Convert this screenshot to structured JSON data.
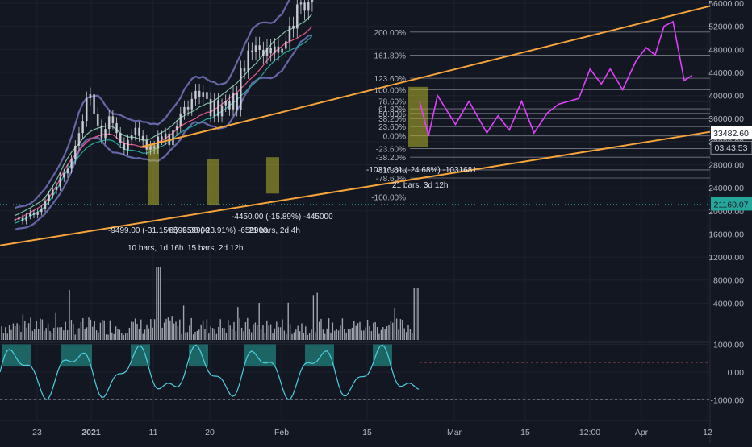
{
  "chart_data": {
    "type": "candlestick",
    "price_axis": {
      "ticks": [
        "56000.00",
        "52000.00",
        "48000.00",
        "44000.00",
        "40000.00",
        "36000.00",
        "32000.00",
        "28000.00",
        "24000.00",
        "20000.00",
        "16000.00",
        "12000.00",
        "8000.00",
        "4000.00"
      ],
      "current_price_label": "33482.60",
      "countdown_label": "03:43:53",
      "green_price_label": "21160.07"
    },
    "oscillator_axis": {
      "ticks": [
        "1000.00",
        "0.00",
        "-1000.00"
      ]
    },
    "x_axis": {
      "ticks": [
        "23",
        "2021",
        "11",
        "20",
        "Feb",
        "15",
        "Mar",
        "15",
        "12:00",
        "Apr",
        "12"
      ]
    },
    "fib_levels": [
      {
        "label": "200.00%",
        "price": 51000
      },
      {
        "label": "161.80%",
        "price": 47000
      },
      {
        "label": "123.60%",
        "price": 43000
      },
      {
        "label": "100.00%",
        "price": 41000
      },
      {
        "label": "78.60%",
        "price": 39000
      },
      {
        "label": "61.80%",
        "price": 37700
      },
      {
        "label": "50.00%",
        "price": 36900
      },
      {
        "label": "38.20%",
        "price": 36000
      },
      {
        "label": "23.60%",
        "price": 34600
      },
      {
        "label": "0.00%",
        "price": 33000
      },
      {
        "label": "-23.60%",
        "price": 30800
      },
      {
        "label": "-38.20%",
        "price": 29300
      },
      {
        "label": "-61.80%",
        "price": 27100
      },
      {
        "label": "-78.60%",
        "price": 25700
      },
      {
        "label": "-100.00%",
        "price": 22400
      }
    ],
    "annotations": [
      {
        "text": "-9499.00 (-31.15%) -659900",
        "time": 10.5,
        "price": 18800
      },
      {
        "text": "-6599.00 (-23.91%) -659900",
        "time": 14.4,
        "price": 18800
      },
      {
        "text": "10 bars, 1d 16h",
        "time": 11.2,
        "price": 15500
      },
      {
        "text": "15 bars, 2d 12h",
        "time": 16.5,
        "price": 15500
      },
      {
        "text": "-4450.00 (-15.89%) -445000",
        "time": 26.4,
        "price": 21400
      },
      {
        "text": "21 bars, 2d 4h",
        "time": 22.2,
        "price": 18800
      },
      {
        "text": "-10316.81 (-24.68%) -1031681",
        "time": 39.6,
        "price": 28600
      },
      {
        "text": "21 bars, 3d 12h",
        "time": 41.3,
        "price": 25900
      }
    ],
    "channel": {
      "upper": [
        [
          12.5,
          31000
        ],
        [
          62,
          55500
        ]
      ],
      "lower": [
        [
          -2,
          14000
        ],
        [
          62,
          33700
        ]
      ]
    },
    "measure_boxes": [
      {
        "t0": 13.0,
        "t1": 14.0,
        "p0": 21000,
        "p1": 31500
      },
      {
        "t0": 18.0,
        "t1": 19.3,
        "p0": 21000,
        "p1": 29000
      },
      {
        "t0": 23.3,
        "t1": 24.5,
        "p0": 23000,
        "p1": 29300
      },
      {
        "t0": 36.0,
        "t1": 37.8,
        "p0": 31000,
        "p1": 41500
      }
    ],
    "candles_close": [
      18500,
      18800,
      18200,
      19100,
      19600,
      19300,
      19800,
      20400,
      21700,
      22800,
      23600,
      24200,
      25800,
      26500,
      27300,
      28900,
      31300,
      33500,
      35600,
      39500,
      40200,
      36800,
      34800,
      32600,
      34200,
      36400,
      35200,
      33500,
      31800,
      30600,
      32300,
      33200,
      34400,
      33000,
      32200,
      30600,
      31200,
      30800,
      32900,
      32400,
      33400,
      31400,
      34000,
      34700,
      36900,
      38000,
      37600,
      39400,
      40800,
      39700,
      40600,
      39400,
      36400,
      39200,
      36400,
      38300,
      39000,
      37600,
      40400,
      37500,
      44700,
      44200,
      47800,
      47500,
      48700,
      47900,
      46900,
      48300,
      47300,
      48500,
      47400,
      48100,
      49400,
      52100,
      51600,
      55800,
      56100,
      54700,
      56200,
      57100,
      52800,
      49600,
      46800,
      47500
    ],
    "candles_t0": -2,
    "candles_dt": 0.5,
    "projection": [
      [
        37.2,
        39000
      ],
      [
        38,
        33000
      ],
      [
        38.8,
        40000
      ],
      [
        40.4,
        35000
      ],
      [
        41.6,
        39000
      ],
      [
        43.2,
        33500
      ],
      [
        44.2,
        36500
      ],
      [
        45.2,
        34000
      ],
      [
        46.3,
        39000
      ],
      [
        47.4,
        33500
      ],
      [
        48.6,
        37000
      ],
      [
        49.6,
        38500
      ],
      [
        51.4,
        39500
      ],
      [
        52.4,
        44600
      ],
      [
        53.4,
        42000
      ],
      [
        54.2,
        44600
      ],
      [
        55.3,
        41000
      ],
      [
        56.5,
        46000
      ],
      [
        57.4,
        48300
      ],
      [
        58.2,
        47000
      ],
      [
        59.0,
        52000
      ],
      [
        59.8,
        52800
      ],
      [
        60.8,
        42600
      ],
      [
        61.5,
        43500
      ]
    ]
  },
  "colors": {
    "background": "#131722",
    "grid": "#1e222d",
    "candle": "#d1d4dc",
    "channel": "#f7a53b",
    "projection": "#e040fb",
    "box_fill": "#b5b32a",
    "fib_line": "#787b86",
    "bollinger": "#6f6fb7",
    "ma_green": "#7fbf9f",
    "ma_pink": "#e05a8a",
    "ma_teal": "#26a69a",
    "volume": "#d1d4dc",
    "oscillator_fill": "#26a69a",
    "oscillator_line": "#4dd0e1",
    "current_price_bg": "#ffffff",
    "green_price_bg": "#26a69a",
    "text": "#d1d4dc"
  }
}
